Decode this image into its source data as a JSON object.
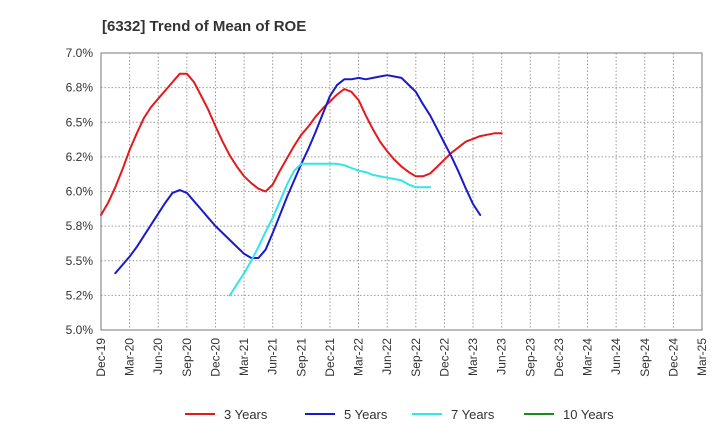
{
  "chart_data": {
    "type": "line",
    "title": "[6332]  Trend of Mean of ROE",
    "xlabel": "",
    "ylabel": "",
    "x_tick_labels": [
      "Dec-19",
      "Mar-20",
      "Jun-20",
      "Sep-20",
      "Dec-20",
      "Mar-21",
      "Jun-21",
      "Sep-21",
      "Dec-21",
      "Mar-22",
      "Jun-22",
      "Sep-22",
      "Dec-22",
      "Mar-23",
      "Jun-23",
      "Sep-23",
      "Dec-23",
      "Mar-24",
      "Jun-24",
      "Sep-24",
      "Dec-24",
      "Mar-25"
    ],
    "y_tick_labels": [
      "7.0%",
      "6.8%",
      "6.5%",
      "6.2%",
      "6.0%",
      "5.8%",
      "5.5%",
      "5.2%",
      "5.0%"
    ],
    "y_tick_values": [
      7.0,
      6.75,
      6.5,
      6.25,
      6.0,
      5.75,
      5.5,
      5.25,
      5.0
    ],
    "ylim": [
      5.0,
      7.0
    ],
    "grid": true,
    "legend_position": "bottom",
    "series": [
      {
        "name": "3 Years",
        "color": "#e31a1c",
        "points": [
          [
            0,
            5.83
          ],
          [
            0.5,
            5.92
          ],
          [
            1,
            6.03
          ],
          [
            1.5,
            6.16
          ],
          [
            2,
            6.3
          ],
          [
            2.5,
            6.42
          ],
          [
            3,
            6.53
          ],
          [
            3.5,
            6.61
          ],
          [
            4,
            6.67
          ],
          [
            4.5,
            6.73
          ],
          [
            5,
            6.79
          ],
          [
            5.5,
            6.85
          ],
          [
            6,
            6.85
          ],
          [
            6.5,
            6.79
          ],
          [
            7,
            6.69
          ],
          [
            7.5,
            6.59
          ],
          [
            8,
            6.47
          ],
          [
            8.5,
            6.36
          ],
          [
            9,
            6.26
          ],
          [
            9.5,
            6.18
          ],
          [
            10,
            6.11
          ],
          [
            10.5,
            6.06
          ],
          [
            11,
            6.02
          ],
          [
            11.5,
            6.0
          ],
          [
            12,
            6.05
          ],
          [
            12.5,
            6.15
          ],
          [
            13,
            6.24
          ],
          [
            13.5,
            6.33
          ],
          [
            14,
            6.41
          ],
          [
            14.5,
            6.47
          ],
          [
            15,
            6.54
          ],
          [
            15.5,
            6.6
          ],
          [
            16,
            6.65
          ],
          [
            16.5,
            6.7
          ],
          [
            17,
            6.74
          ],
          [
            17.5,
            6.72
          ],
          [
            18,
            6.66
          ],
          [
            18.5,
            6.55
          ],
          [
            19,
            6.45
          ],
          [
            19.5,
            6.36
          ],
          [
            20,
            6.29
          ],
          [
            20.5,
            6.23
          ],
          [
            21,
            6.18
          ],
          [
            21.5,
            6.14
          ],
          [
            22,
            6.11
          ],
          [
            22.5,
            6.11
          ],
          [
            23,
            6.13
          ],
          [
            23.5,
            6.18
          ],
          [
            24,
            6.23
          ],
          [
            24.5,
            6.28
          ],
          [
            25,
            6.32
          ],
          [
            25.5,
            6.36
          ],
          [
            26,
            6.38
          ],
          [
            26.5,
            6.4
          ],
          [
            27,
            6.41
          ],
          [
            27.5,
            6.42
          ],
          [
            28,
            6.42
          ]
        ]
      },
      {
        "name": "5 Years",
        "color": "#1a1acc",
        "points": [
          [
            1,
            5.41
          ],
          [
            1.5,
            5.47
          ],
          [
            2,
            5.53
          ],
          [
            2.5,
            5.6
          ],
          [
            3,
            5.68
          ],
          [
            3.5,
            5.76
          ],
          [
            4,
            5.84
          ],
          [
            4.5,
            5.92
          ],
          [
            5,
            5.99
          ],
          [
            5.5,
            6.01
          ],
          [
            6,
            5.99
          ],
          [
            6.5,
            5.93
          ],
          [
            7,
            5.87
          ],
          [
            7.5,
            5.81
          ],
          [
            8,
            5.75
          ],
          [
            8.5,
            5.7
          ],
          [
            9,
            5.65
          ],
          [
            9.5,
            5.6
          ],
          [
            10,
            5.55
          ],
          [
            10.5,
            5.52
          ],
          [
            11,
            5.52
          ],
          [
            11.5,
            5.58
          ],
          [
            12,
            5.7
          ],
          [
            12.5,
            5.83
          ],
          [
            13,
            5.96
          ],
          [
            13.5,
            6.08
          ],
          [
            14,
            6.2
          ],
          [
            14.5,
            6.31
          ],
          [
            15,
            6.43
          ],
          [
            15.5,
            6.56
          ],
          [
            16,
            6.69
          ],
          [
            16.5,
            6.77
          ],
          [
            17,
            6.81
          ],
          [
            17.5,
            6.81
          ],
          [
            18,
            6.82
          ],
          [
            18.5,
            6.81
          ],
          [
            19,
            6.82
          ],
          [
            19.5,
            6.83
          ],
          [
            20,
            6.84
          ],
          [
            20.5,
            6.83
          ],
          [
            21,
            6.82
          ],
          [
            21.5,
            6.77
          ],
          [
            22,
            6.72
          ],
          [
            22.5,
            6.63
          ],
          [
            23,
            6.55
          ],
          [
            23.5,
            6.45
          ],
          [
            24,
            6.35
          ],
          [
            24.5,
            6.25
          ],
          [
            25,
            6.14
          ],
          [
            25.5,
            6.02
          ],
          [
            26,
            5.91
          ],
          [
            26.5,
            5.83
          ]
        ]
      },
      {
        "name": "7 Years",
        "color": "#33e6e6",
        "points": [
          [
            9,
            5.25
          ],
          [
            9.5,
            5.33
          ],
          [
            10,
            5.41
          ],
          [
            10.5,
            5.5
          ],
          [
            11,
            5.6
          ],
          [
            11.5,
            5.71
          ],
          [
            12,
            5.81
          ],
          [
            12.5,
            5.93
          ],
          [
            13,
            6.05
          ],
          [
            13.5,
            6.15
          ],
          [
            14,
            6.2
          ],
          [
            14.5,
            6.2
          ],
          [
            15,
            6.2
          ],
          [
            15.5,
            6.2
          ],
          [
            16,
            6.2
          ],
          [
            16.5,
            6.2
          ],
          [
            17,
            6.19
          ],
          [
            17.5,
            6.17
          ],
          [
            18,
            6.15
          ],
          [
            18.5,
            6.14
          ],
          [
            19,
            6.12
          ],
          [
            19.5,
            6.11
          ],
          [
            20,
            6.1
          ],
          [
            20.5,
            6.09
          ],
          [
            21,
            6.08
          ],
          [
            21.5,
            6.05
          ],
          [
            22,
            6.03
          ],
          [
            22.5,
            6.03
          ],
          [
            23,
            6.03
          ]
        ]
      },
      {
        "name": "10 Years",
        "color": "#1a8c1a",
        "points": []
      }
    ]
  }
}
